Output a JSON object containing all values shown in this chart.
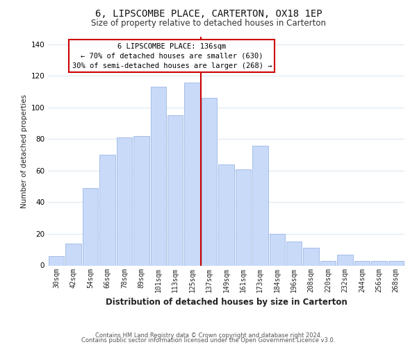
{
  "title": "6, LIPSCOMBE PLACE, CARTERTON, OX18 1EP",
  "subtitle": "Size of property relative to detached houses in Carterton",
  "xlabel": "Distribution of detached houses by size in Carterton",
  "ylabel": "Number of detached properties",
  "bar_labels": [
    "30sqm",
    "42sqm",
    "54sqm",
    "66sqm",
    "78sqm",
    "89sqm",
    "101sqm",
    "113sqm",
    "125sqm",
    "137sqm",
    "149sqm",
    "161sqm",
    "173sqm",
    "184sqm",
    "196sqm",
    "208sqm",
    "220sqm",
    "232sqm",
    "244sqm",
    "256sqm",
    "268sqm"
  ],
  "bar_values": [
    6,
    14,
    49,
    70,
    81,
    82,
    113,
    95,
    116,
    106,
    64,
    61,
    76,
    20,
    15,
    11,
    3,
    7,
    3,
    3,
    3
  ],
  "bar_color": "#c9daf8",
  "bar_edge_color": "#a4bde8",
  "vline_color": "#cc0000",
  "annotation_title": "6 LIPSCOMBE PLACE: 136sqm",
  "annotation_line1": "← 70% of detached houses are smaller (630)",
  "annotation_line2": "30% of semi-detached houses are larger (268) →",
  "annotation_box_color": "#ffffff",
  "annotation_box_edge": "#cc0000",
  "ylim": [
    0,
    145
  ],
  "yticks": [
    0,
    20,
    40,
    60,
    80,
    100,
    120,
    140
  ],
  "footer1": "Contains HM Land Registry data © Crown copyright and database right 2024.",
  "footer2": "Contains public sector information licensed under the Open Government Licence v3.0.",
  "bg_color": "#ffffff",
  "grid_color": "#dce8f0",
  "title_fontsize": 10,
  "subtitle_fontsize": 8.5,
  "xlabel_fontsize": 8.5,
  "ylabel_fontsize": 7.5,
  "tick_fontsize": 7,
  "annotation_fontsize": 7.5,
  "footer_fontsize": 6
}
